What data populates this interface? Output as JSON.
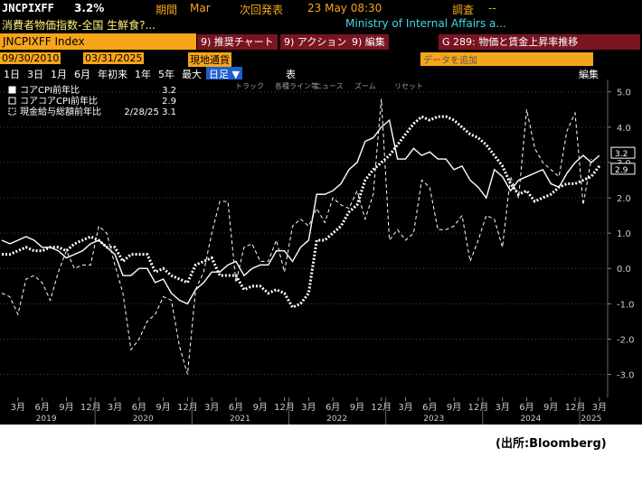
{
  "ui": {
    "ticker": "JNCPIXFF",
    "last": "3.2%",
    "period_label": "期間",
    "period": "Mar",
    "next_label": "次回発表",
    "next": "23 May 08:30",
    "survey_label": "調査",
    "survey": "--",
    "name": "消費者物価指数-全国 生鮮食?...",
    "source_org": "Ministry of Internal Affairs a...",
    "security": "JNCPIXFF Index",
    "btn1": "9) 推奨チャート",
    "btn2": "9) アクション",
    "btn3": "9) 編集",
    "btn4": "G 289: 物価と賃金上昇率推移",
    "start": "09/30/2010",
    "end": "03/31/2025",
    "currency": "現地通貨",
    "add_data": "データを追加",
    "edit": "編集",
    "ranges": [
      "1日",
      "3日",
      "1月",
      "6月",
      "年初来",
      "1年",
      "5年",
      "最大"
    ],
    "freq": "日足 ▼",
    "table": "表",
    "tools": [
      "トラック",
      "各種ライン等",
      "ニュース",
      "ズーム",
      "リセット"
    ],
    "credit": "(出所:Bloomberg)"
  },
  "chart_data": {
    "type": "line",
    "categories": [
      null,
      null,
      "3月",
      null,
      null,
      "6月",
      null,
      null,
      "9月",
      null,
      null,
      "12月",
      null,
      null,
      "3月",
      null,
      null,
      "6月",
      null,
      null,
      "9月",
      null,
      null,
      "12月",
      null,
      null,
      "3月",
      null,
      null,
      "6月",
      null,
      null,
      "9月",
      null,
      null,
      "12月",
      null,
      null,
      "3月",
      null,
      null,
      "6月",
      null,
      null,
      "9月",
      null,
      null,
      "12月",
      null,
      null,
      "3月",
      null,
      null,
      "6月",
      null,
      null,
      "9月",
      null,
      null,
      "12月",
      null,
      null,
      "3月",
      null,
      null,
      "6月",
      null,
      null,
      "9月",
      null,
      null,
      "12月",
      null,
      null,
      "3月"
    ],
    "years": [
      "2019",
      "2020",
      "2021",
      "2022",
      "2023",
      "2024",
      "2025"
    ],
    "ylim": [
      -3.6,
      5.3
    ],
    "yticks": [
      {
        "value": 5,
        "label": "5.0"
      },
      {
        "value": 4,
        "label": "4.0"
      },
      {
        "value": 3,
        "label": "3.0"
      },
      {
        "value": 2,
        "label": "2.0"
      },
      {
        "value": 1,
        "label": "1.0"
      },
      {
        "value": 0,
        "label": "0.0"
      },
      {
        "value": -1,
        "label": "-1.0"
      },
      {
        "value": -2,
        "label": "-2.0"
      },
      {
        "value": -3,
        "label": "-3.0"
      }
    ],
    "grid": true,
    "series": [
      {
        "name": "コアCPI前年比",
        "legend_value": "3.2",
        "color": "#ffffff",
        "style": "solid",
        "tag": "3.2",
        "values": [
          0.8,
          0.7,
          0.8,
          0.9,
          0.8,
          0.6,
          0.6,
          0.5,
          0.3,
          0.4,
          0.5,
          0.7,
          0.8,
          0.6,
          0.4,
          -0.2,
          -0.2,
          0.0,
          0.0,
          -0.4,
          -0.3,
          -0.7,
          -0.9,
          -1.0,
          -0.6,
          -0.4,
          -0.1,
          -0.1,
          0.1,
          0.2,
          -0.2,
          0.0,
          0.1,
          0.1,
          0.5,
          0.5,
          0.2,
          0.6,
          0.8,
          2.1,
          2.1,
          2.2,
          2.4,
          2.8,
          3.0,
          3.6,
          3.7,
          4.0,
          4.2,
          3.1,
          3.1,
          3.4,
          3.2,
          3.3,
          3.1,
          3.1,
          2.8,
          2.9,
          2.5,
          2.3,
          2.0,
          2.8,
          2.6,
          2.2,
          2.5,
          2.6,
          2.7,
          2.8,
          2.4,
          2.3,
          2.7,
          3.0,
          3.2,
          3.0,
          3.2
        ]
      },
      {
        "name": "コアコアCPI前年比",
        "legend_value": "2.9",
        "color": "#ffffff",
        "style": "dotted",
        "tag": "2.9",
        "values": [
          0.4,
          0.4,
          0.5,
          0.6,
          0.5,
          0.5,
          0.6,
          0.6,
          0.5,
          0.7,
          0.8,
          0.9,
          0.8,
          0.6,
          0.6,
          0.2,
          0.4,
          0.4,
          0.4,
          -0.1,
          0.0,
          -0.2,
          -0.3,
          -0.4,
          0.1,
          0.2,
          0.3,
          -0.2,
          -0.2,
          -0.2,
          -0.6,
          -0.5,
          -0.5,
          -0.7,
          -0.6,
          -0.7,
          -1.1,
          -1.0,
          -0.7,
          0.8,
          0.8,
          1.0,
          1.2,
          1.6,
          1.8,
          2.5,
          2.8,
          3.0,
          3.2,
          3.5,
          3.8,
          4.1,
          4.3,
          4.2,
          4.3,
          4.3,
          4.2,
          4.0,
          3.8,
          3.7,
          3.5,
          3.2,
          2.9,
          2.4,
          2.1,
          2.2,
          1.9,
          2.0,
          2.1,
          2.3,
          2.4,
          2.4,
          2.5,
          2.6,
          2.9
        ]
      },
      {
        "name": "現金給与総額前年比",
        "legend_value": "2/28/25 3.1",
        "color": "#ffffff",
        "style": "dashed",
        "values": [
          -0.7,
          -0.8,
          -1.3,
          -0.3,
          -0.2,
          -0.4,
          -0.9,
          -0.1,
          0.5,
          0.0,
          0.1,
          0.1,
          1.2,
          1.0,
          0.1,
          -0.7,
          -2.3,
          -2.0,
          -1.5,
          -1.3,
          -0.8,
          -0.9,
          -2.2,
          -3.0,
          -0.6,
          -0.1,
          1.0,
          1.9,
          1.9,
          -0.4,
          0.6,
          0.7,
          0.2,
          0.2,
          0.8,
          -0.1,
          1.2,
          1.4,
          1.2,
          1.7,
          1.3,
          2.0,
          1.8,
          1.7,
          2.2,
          1.4,
          2.1,
          4.8,
          0.8,
          1.1,
          0.8,
          1.0,
          2.5,
          2.3,
          1.1,
          1.1,
          1.2,
          1.5,
          0.2,
          0.8,
          1.5,
          1.4,
          0.6,
          2.6,
          2.0,
          4.5,
          3.4,
          3.0,
          2.8,
          2.6,
          3.9,
          4.4,
          1.8,
          3.1,
          null
        ]
      }
    ]
  }
}
